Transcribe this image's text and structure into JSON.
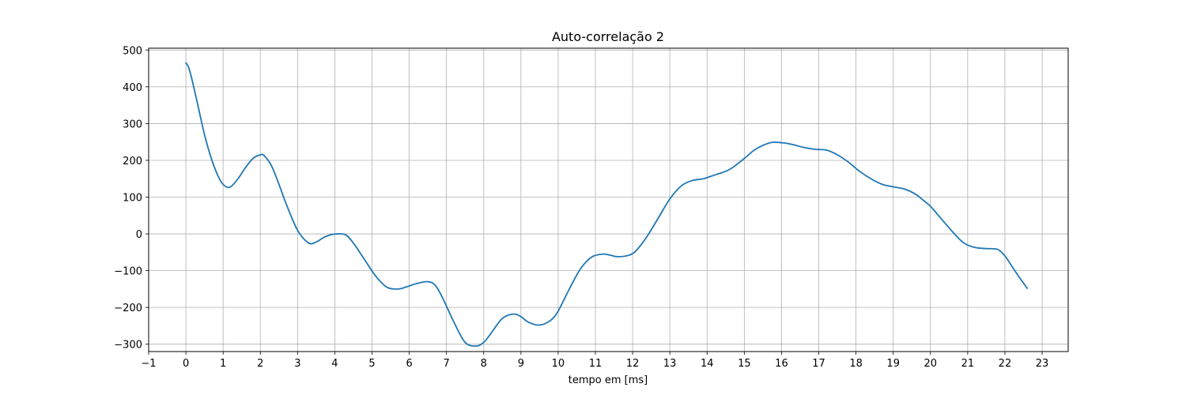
{
  "chart_data": {
    "type": "line",
    "title": "Auto-correlação 2",
    "xlabel": "tempo em [ms]",
    "ylabel": "",
    "xlim": [
      -1,
      23.7
    ],
    "ylim": [
      -320,
      505
    ],
    "grid": true,
    "x_ticks": [
      -1,
      0,
      1,
      2,
      3,
      4,
      5,
      6,
      7,
      8,
      9,
      10,
      11,
      12,
      13,
      14,
      15,
      16,
      17,
      18,
      19,
      20,
      21,
      22,
      23
    ],
    "y_ticks": [
      500,
      400,
      300,
      200,
      100,
      0,
      -100,
      -200,
      -300
    ],
    "x_tick_labels": [
      "−1",
      "0",
      "1",
      "2",
      "3",
      "4",
      "5",
      "6",
      "7",
      "8",
      "9",
      "10",
      "11",
      "12",
      "13",
      "14",
      "15",
      "16",
      "17",
      "18",
      "19",
      "20",
      "21",
      "22",
      "23"
    ],
    "y_tick_labels": [
      "500",
      "400",
      "300",
      "200",
      "100",
      "0",
      "−100",
      "−200",
      "−300"
    ],
    "series": [
      {
        "color": "#1f77b4",
        "x": [
          0,
          0.1,
          0.3,
          0.5,
          0.7,
          0.9,
          1.05,
          1.2,
          1.4,
          1.6,
          1.8,
          2.0,
          2.1,
          2.3,
          2.5,
          2.7,
          3.0,
          3.3,
          3.5,
          3.7,
          3.9,
          4.1,
          4.3,
          4.5,
          4.8,
          5.1,
          5.4,
          5.7,
          5.9,
          6.2,
          6.5,
          6.7,
          6.9,
          7.2,
          7.5,
          7.8,
          8.0,
          8.2,
          8.5,
          8.8,
          9.0,
          9.2,
          9.5,
          9.8,
          10.0,
          10.3,
          10.6,
          10.9,
          11.2,
          11.4,
          11.6,
          11.9,
          12.1,
          12.4,
          12.7,
          13.0,
          13.3,
          13.6,
          13.9,
          14.2,
          14.6,
          15.0,
          15.3,
          15.7,
          16.0,
          16.3,
          16.6,
          16.9,
          17.2,
          17.5,
          17.8,
          18.1,
          18.4,
          18.7,
          19.0,
          19.3,
          19.6,
          19.8,
          20.0,
          20.3,
          20.6,
          20.9,
          21.2,
          21.5,
          21.8,
          22.0,
          22.2,
          22.4,
          22.6
        ],
        "y": [
          465,
          445,
          360,
          270,
          200,
          150,
          130,
          128,
          150,
          180,
          205,
          215,
          213,
          185,
          135,
          80,
          10,
          -25,
          -22,
          -10,
          -2,
          0,
          -3,
          -25,
          -70,
          -115,
          -145,
          -150,
          -145,
          -135,
          -130,
          -140,
          -175,
          -240,
          -295,
          -305,
          -295,
          -270,
          -230,
          -218,
          -225,
          -240,
          -248,
          -235,
          -210,
          -150,
          -95,
          -63,
          -55,
          -58,
          -62,
          -58,
          -45,
          -5,
          45,
          95,
          130,
          145,
          150,
          160,
          175,
          205,
          230,
          248,
          248,
          243,
          235,
          230,
          228,
          215,
          195,
          170,
          150,
          135,
          128,
          122,
          108,
          92,
          75,
          40,
          5,
          -25,
          -37,
          -40,
          -42,
          -60,
          -90,
          -120,
          -148
        ]
      }
    ]
  }
}
